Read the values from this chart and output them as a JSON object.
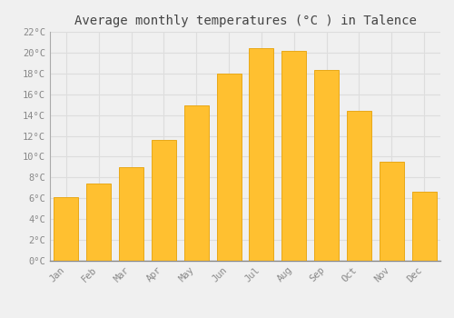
{
  "title": "Average monthly temperatures (°C ) in Talence",
  "months": [
    "Jan",
    "Feb",
    "Mar",
    "Apr",
    "May",
    "Jun",
    "Jul",
    "Aug",
    "Sep",
    "Oct",
    "Nov",
    "Dec"
  ],
  "values": [
    6.1,
    7.4,
    9.0,
    11.6,
    14.9,
    18.0,
    20.4,
    20.2,
    18.3,
    14.4,
    9.5,
    6.6
  ],
  "bar_color": "#FFC030",
  "bar_edge_color": "#E8A818",
  "background_color": "#F0F0F0",
  "grid_color": "#DDDDDD",
  "text_color": "#888888",
  "ylim": [
    0,
    22
  ],
  "ytick_step": 2,
  "title_fontsize": 10,
  "tick_fontsize": 7.5,
  "font_family": "monospace"
}
